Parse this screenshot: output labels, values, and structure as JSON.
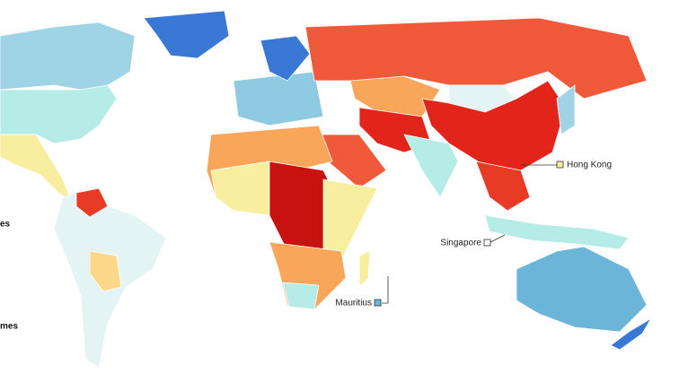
{
  "labels": {
    "hong_kong": "Hong Kong",
    "singapore": "Singapore",
    "mauritius": "Mauritius"
  },
  "legend": [
    "es",
    "mes"
  ]
}
